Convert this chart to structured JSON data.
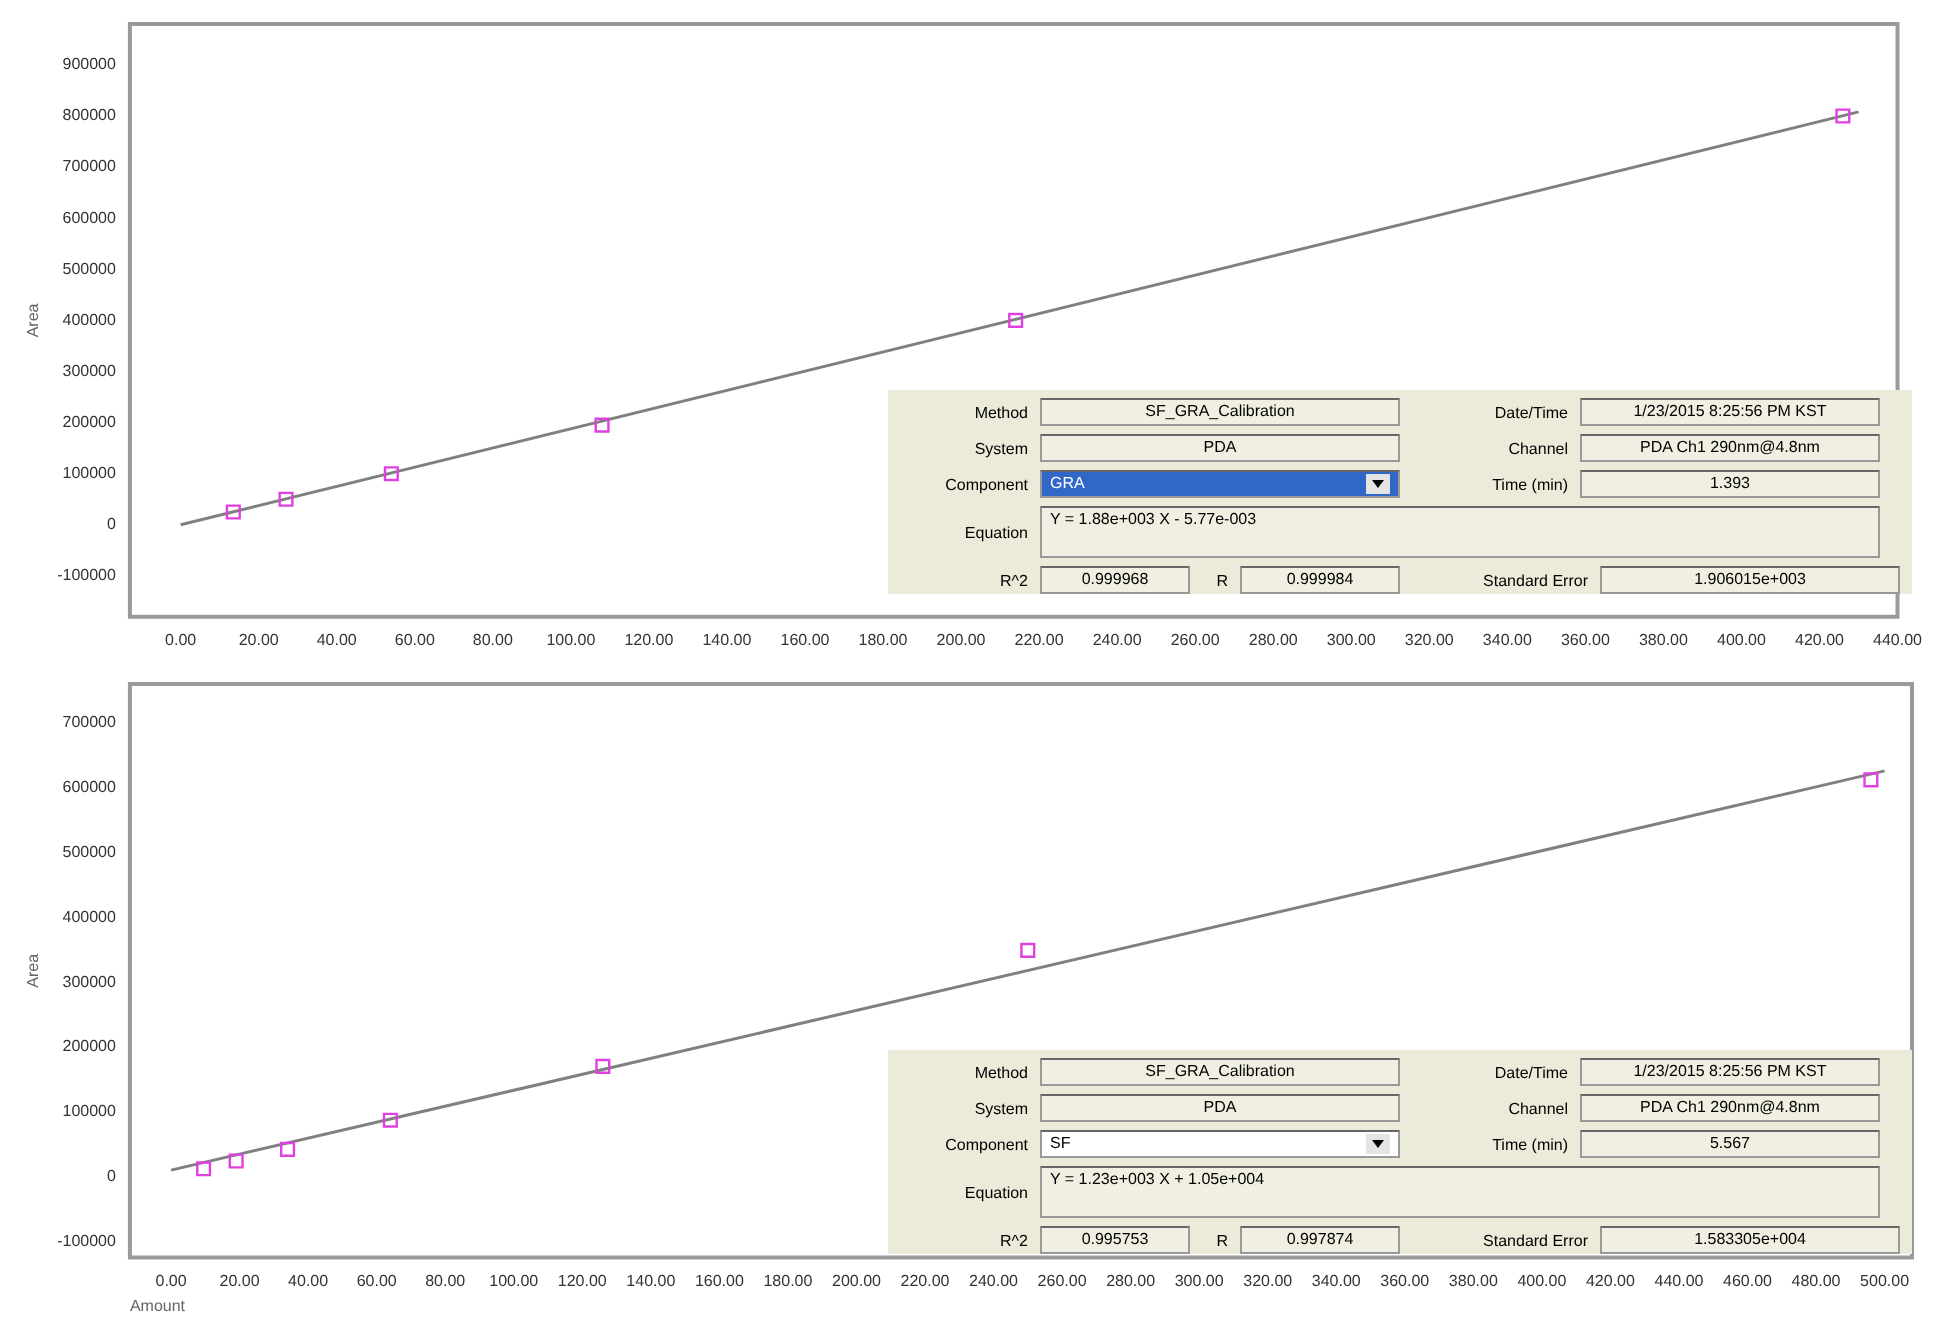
{
  "chart_data": [
    {
      "type": "scatter",
      "ylabel": "Area",
      "xlim": [
        -13,
        440
      ],
      "ylim": [
        -180000,
        980000
      ],
      "xticks": [
        {
          "value": 0,
          "label": "0.00"
        },
        {
          "value": 20,
          "label": "20.00"
        },
        {
          "value": 40,
          "label": "40.00"
        },
        {
          "value": 60,
          "label": "60.00"
        },
        {
          "value": 80,
          "label": "80.00"
        },
        {
          "value": 100,
          "label": "100.00"
        },
        {
          "value": 120,
          "label": "120.00"
        },
        {
          "value": 140,
          "label": "140.00"
        },
        {
          "value": 160,
          "label": "160.00"
        },
        {
          "value": 180,
          "label": "180.00"
        },
        {
          "value": 200,
          "label": "200.00"
        },
        {
          "value": 220,
          "label": "220.00"
        },
        {
          "value": 240,
          "label": "240.00"
        },
        {
          "value": 260,
          "label": "260.00"
        },
        {
          "value": 280,
          "label": "280.00"
        },
        {
          "value": 300,
          "label": "300.00"
        },
        {
          "value": 320,
          "label": "320.00"
        },
        {
          "value": 340,
          "label": "340.00"
        },
        {
          "value": 360,
          "label": "360.00"
        },
        {
          "value": 380,
          "label": "380.00"
        },
        {
          "value": 400,
          "label": "400.00"
        },
        {
          "value": 420,
          "label": "420.00"
        },
        {
          "value": 440,
          "label": "440.00"
        }
      ],
      "yticks": [
        -100000,
        0,
        100000,
        200000,
        300000,
        400000,
        500000,
        600000,
        700000,
        800000,
        900000
      ],
      "series": [
        {
          "type": "scatter",
          "color": "#e040e0",
          "marker": "square",
          "x": [
            13.5,
            27,
            54,
            108,
            214,
            426
          ],
          "values": [
            25000,
            50000,
            100000,
            195000,
            400000,
            800000
          ]
        },
        {
          "type": "line",
          "color": "#808080",
          "marker": "none",
          "x": [
            0,
            430
          ],
          "values": [
            0,
            808000
          ]
        }
      ],
      "annotations": [
        "Method",
        "SF_GRA_Calibration",
        "Date/Time",
        "1/23/2015 8:25:56 PM KST",
        "System",
        "PDA",
        "Channel",
        "PDA Ch1 290nm@4.8nm",
        "Component",
        "GRA",
        "Time (min)",
        "1.393",
        "Equation",
        "Y = 1.88e+003 X - 5.77e-003",
        "R^2",
        "0.999968",
        "R",
        "0.999984",
        "Standard Error",
        "1.906015e+003"
      ]
    },
    {
      "type": "scatter",
      "ylabel": "Area",
      "xlabel": "Amount",
      "xlim": [
        -12,
        508
      ],
      "ylim": [
        -125000,
        760000
      ],
      "xticks": [
        {
          "value": 0,
          "label": "0.00"
        },
        {
          "value": 20,
          "label": "20.00"
        },
        {
          "value": 40,
          "label": "40.00"
        },
        {
          "value": 60,
          "label": "60.00"
        },
        {
          "value": 80,
          "label": "80.00"
        },
        {
          "value": 100,
          "label": "100.00"
        },
        {
          "value": 120,
          "label": "120.00"
        },
        {
          "value": 140,
          "label": "140.00"
        },
        {
          "value": 160,
          "label": "160.00"
        },
        {
          "value": 180,
          "label": "180.00"
        },
        {
          "value": 200,
          "label": "200.00"
        },
        {
          "value": 220,
          "label": "220.00"
        },
        {
          "value": 240,
          "label": "240.00"
        },
        {
          "value": 260,
          "label": "260.00"
        },
        {
          "value": 280,
          "label": "280.00"
        },
        {
          "value": 300,
          "label": "300.00"
        },
        {
          "value": 320,
          "label": "320.00"
        },
        {
          "value": 340,
          "label": "340.00"
        },
        {
          "value": 360,
          "label": "360.00"
        },
        {
          "value": 380,
          "label": "380.00"
        },
        {
          "value": 400,
          "label": "400.00"
        },
        {
          "value": 420,
          "label": "420.00"
        },
        {
          "value": 440,
          "label": "440.00"
        },
        {
          "value": 460,
          "label": "460.00"
        },
        {
          "value": 480,
          "label": "480.00"
        },
        {
          "value": 500,
          "label": "500.00"
        }
      ],
      "yticks": [
        -100000,
        0,
        100000,
        200000,
        300000,
        400000,
        500000,
        600000,
        700000
      ],
      "series": [
        {
          "type": "scatter",
          "color": "#e040e0",
          "marker": "square",
          "x": [
            9.5,
            19,
            34,
            64,
            126,
            250,
            496
          ],
          "values": [
            12000,
            24000,
            42000,
            87000,
            170000,
            349000,
            612000
          ]
        },
        {
          "type": "line",
          "color": "#808080",
          "marker": "none",
          "x": [
            0,
            500
          ],
          "values": [
            10000,
            626000
          ]
        }
      ],
      "annotations": [
        "Method",
        "SF_GRA_Calibration",
        "Date/Time",
        "1/23/2015 8:25:56 PM KST",
        "System",
        "PDA",
        "Channel",
        "PDA Ch1 290nm@4.8nm",
        "Component",
        "SF",
        "Time (min)",
        "5.567",
        "Equation",
        "Y = 1.23e+003 X + 1.05e+004",
        "R^2",
        "0.995753",
        "R",
        "0.997874",
        "Standard Error",
        "1.583305e+004"
      ]
    }
  ]
}
